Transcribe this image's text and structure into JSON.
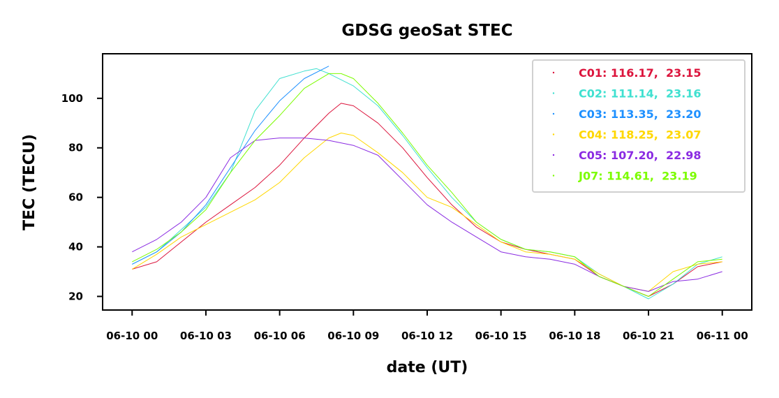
{
  "chart_data": {
    "type": "line",
    "title": "GDSG geoSat STEC",
    "xlabel": "date (UT)",
    "ylabel": "TEC (TECU)",
    "x_unit": "hours since 06-10 00 UT",
    "xlim": [
      -1.2,
      25.2
    ],
    "ylim": [
      14.5,
      118
    ],
    "x_ticks": [
      0,
      3,
      6,
      9,
      12,
      15,
      18,
      21,
      24
    ],
    "x_tick_labels": [
      "06-10 00",
      "06-10 03",
      "06-10 06",
      "06-10 09",
      "06-10 12",
      "06-10 15",
      "06-10 18",
      "06-10 21",
      "06-11 00"
    ],
    "y_ticks": [
      20,
      40,
      60,
      80,
      100
    ],
    "y_tick_labels": [
      "20",
      "40",
      "60",
      "80",
      "100"
    ],
    "grid": false,
    "legend_position": "top-right",
    "series": [
      {
        "name": "C01",
        "legend_label": "C01: 116.17,  23.15",
        "color": "#dc143c",
        "x": [
          0,
          1,
          2,
          3,
          4,
          5,
          6,
          7,
          8,
          8.5,
          9,
          10,
          11,
          12,
          13,
          14,
          15,
          16,
          17,
          18,
          19,
          20,
          21,
          22,
          23,
          24
        ],
        "y": [
          31,
          34,
          42,
          50,
          57,
          64,
          73,
          84,
          94,
          98,
          97,
          90,
          80,
          68,
          57,
          48,
          42,
          39,
          37,
          35,
          28,
          24,
          20,
          25,
          32,
          34
        ]
      },
      {
        "name": "C02",
        "legend_label": "C02: 111.14,  23.16",
        "color": "#40e0d0",
        "x": [
          0,
          1,
          2,
          3,
          4,
          5,
          6,
          7,
          7.5,
          8,
          9,
          10,
          11,
          12,
          13,
          14,
          15,
          16,
          17,
          18,
          19,
          20,
          21,
          22,
          23,
          24
        ],
        "y": [
          33,
          38,
          47,
          56,
          70,
          95,
          108,
          111,
          112,
          110,
          105,
          97,
          85,
          72,
          60,
          50,
          43,
          39,
          38,
          36,
          29,
          24,
          19,
          25,
          33,
          36
        ]
      },
      {
        "name": "C03",
        "legend_label": "C03: 113.35,  23.20",
        "color": "#1e90ff",
        "x": [
          0,
          1,
          2,
          3,
          4,
          5,
          6,
          7,
          8
        ],
        "y": [
          33,
          38,
          46,
          57,
          72,
          87,
          99,
          108,
          113
        ]
      },
      {
        "name": "C04",
        "legend_label": "C04: 118.25,  23.07",
        "color": "#ffd700",
        "x": [
          0,
          1,
          2,
          3,
          4,
          5,
          6,
          7,
          8,
          8.5,
          9,
          10,
          11,
          12,
          13,
          14,
          15,
          16,
          17,
          18,
          19,
          20,
          21,
          22,
          23,
          24
        ],
        "y": [
          31,
          37,
          44,
          49,
          54,
          59,
          66,
          76,
          84,
          86,
          85,
          78,
          70,
          60,
          56,
          49,
          42,
          38,
          37,
          35,
          29,
          24,
          22,
          30,
          33,
          34
        ]
      },
      {
        "name": "C05",
        "legend_label": "C05: 107.20,  22.98",
        "color": "#8a2be2",
        "x": [
          0,
          1,
          2,
          3,
          4,
          5,
          6,
          7,
          8,
          9,
          10,
          11,
          12,
          13,
          14,
          15,
          16,
          17,
          18,
          19,
          20,
          21,
          22,
          23,
          24
        ],
        "y": [
          38,
          43,
          50,
          60,
          76,
          83,
          84,
          84,
          83,
          81,
          77,
          67,
          57,
          50,
          44,
          38,
          36,
          35,
          33,
          28,
          24,
          22,
          26,
          27,
          30
        ]
      },
      {
        "name": "J07",
        "legend_label": "J07: 114.61,  23.19",
        "color": "#7cfc00",
        "x": [
          0,
          1,
          2,
          3,
          4,
          5,
          6,
          7,
          8,
          8.5,
          9,
          10,
          11,
          12,
          13,
          14,
          15,
          16,
          17,
          18,
          19,
          20,
          21,
          22,
          23,
          24
        ],
        "y": [
          34,
          39,
          46,
          55,
          70,
          83,
          93,
          104,
          110,
          110,
          108,
          98,
          86,
          73,
          62,
          50,
          43,
          39,
          38,
          36,
          28,
          24,
          20,
          27,
          34,
          35
        ]
      }
    ]
  }
}
